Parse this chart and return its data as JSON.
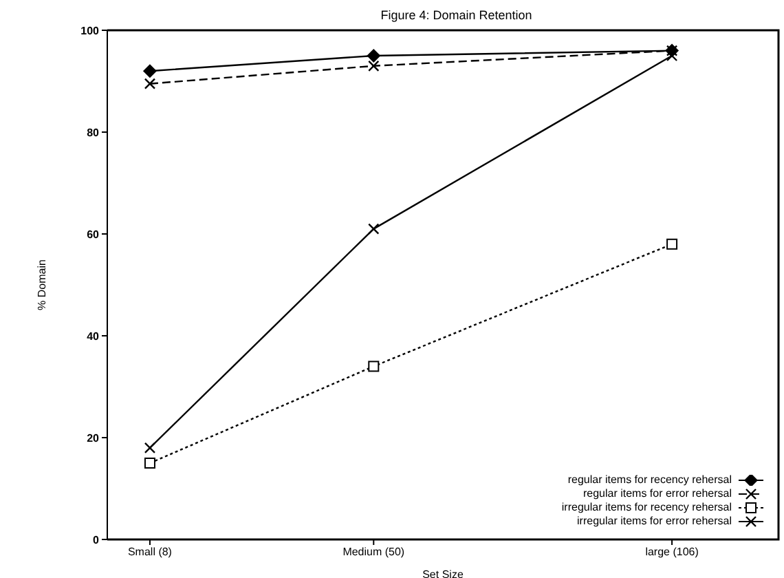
{
  "chart_data": {
    "type": "line",
    "title": "Figure 4: Domain Retention",
    "xlabel": "Set Size",
    "ylabel": "% Domain",
    "x": [
      8,
      50,
      106
    ],
    "series": [
      {
        "name": "regular items for recency rehersal",
        "color": "#000000",
        "values": [
          92,
          95,
          96
        ],
        "marker": "diamond",
        "line_style": "solid"
      },
      {
        "name": "regular items for error rehersal",
        "color": "#000000",
        "values": [
          89.5,
          93,
          96
        ],
        "marker": "cross",
        "line_style": "dashed"
      },
      {
        "name": "irregular items for recency rehersal",
        "color": "#000000",
        "values": [
          15,
          34,
          58
        ],
        "marker": "square",
        "line_style": "dotted"
      },
      {
        "name": "irregular items for error rehersal",
        "color": "#000000",
        "values": [
          18,
          61,
          95
        ],
        "marker": "cross",
        "line_style": "solid"
      }
    ],
    "xlim": [
      0,
      126
    ],
    "xticks": [
      {
        "value": 8,
        "label": "Small (8)"
      },
      {
        "value": 50,
        "label": "Medium (50)"
      },
      {
        "value": 106,
        "label": "large (106)"
      }
    ],
    "ylim": [
      0,
      100
    ],
    "yticks": [
      0,
      20,
      40,
      60,
      80,
      100
    ],
    "grid": false,
    "legend": "bottom right"
  }
}
